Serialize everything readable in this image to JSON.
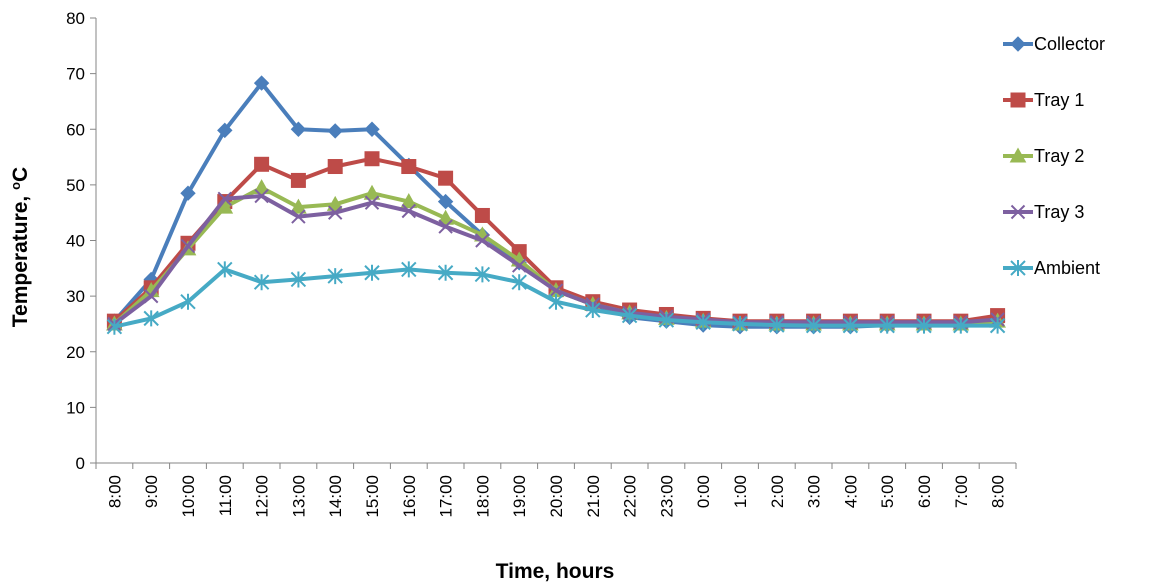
{
  "chart_data": {
    "type": "line",
    "xlabel": "Time, hours",
    "ylabel_main": "Temperature, ",
    "ylabel_sup": "o",
    "ylabel_unit": "C",
    "ylim": [
      0,
      80
    ],
    "ytick_step": 10,
    "grid": false,
    "legend_position": "right",
    "categories": [
      "8:00",
      "9:00",
      "10:00",
      "11:00",
      "12:00",
      "13:00",
      "14:00",
      "15:00",
      "16:00",
      "17:00",
      "18:00",
      "19:00",
      "20:00",
      "21:00",
      "22:00",
      "23:00",
      "0:00",
      "1:00",
      "2:00",
      "3:00",
      "4:00",
      "5:00",
      "6:00",
      "7:00",
      "8:00"
    ],
    "series": [
      {
        "name": "Collector",
        "color": "#4a7ebb",
        "marker": "diamond",
        "values": [
          25.5,
          33,
          48.5,
          59.8,
          68.3,
          60,
          59.7,
          60,
          53.5,
          47,
          41,
          36,
          31,
          28.5,
          26.2,
          25.5,
          24.8,
          24.5,
          24.5,
          24.5,
          24.5,
          24.8,
          25,
          25,
          25.5
        ]
      },
      {
        "name": "Tray 1",
        "color": "#be4b48",
        "marker": "square",
        "values": [
          25.5,
          31.5,
          39.5,
          47,
          53.7,
          50.8,
          53.3,
          54.7,
          53.3,
          51.2,
          44.5,
          38,
          31.5,
          29,
          27.5,
          26.7,
          26,
          25.5,
          25.5,
          25.5,
          25.5,
          25.5,
          25.5,
          25.5,
          26.5
        ]
      },
      {
        "name": "Tray 2",
        "color": "#98b954",
        "marker": "triangle",
        "values": [
          25,
          31,
          38.5,
          46,
          49.5,
          46,
          46.5,
          48.5,
          47,
          44,
          41,
          36.5,
          31,
          28.5,
          27,
          26,
          25.5,
          25,
          25,
          25,
          25,
          25,
          25,
          25,
          25.5
        ]
      },
      {
        "name": "Tray 3",
        "color": "#7d60a0",
        "marker": "x",
        "values": [
          25,
          30,
          39,
          47.5,
          48,
          44.3,
          45,
          46.8,
          45.3,
          42.5,
          40,
          35.5,
          31,
          28.5,
          27,
          26.3,
          25.8,
          25.3,
          25.3,
          25.3,
          25.3,
          25.3,
          25.3,
          25.3,
          25.8
        ]
      },
      {
        "name": "Ambient",
        "color": "#46aac5",
        "marker": "asterisk",
        "values": [
          24.5,
          26,
          29,
          34.8,
          32.5,
          33,
          33.6,
          34.2,
          34.8,
          34.2,
          33.9,
          32.5,
          29,
          27.5,
          26.5,
          25.7,
          25.3,
          25,
          24.8,
          24.7,
          24.7,
          24.7,
          24.7,
          24.7,
          24.7
        ]
      }
    ]
  }
}
